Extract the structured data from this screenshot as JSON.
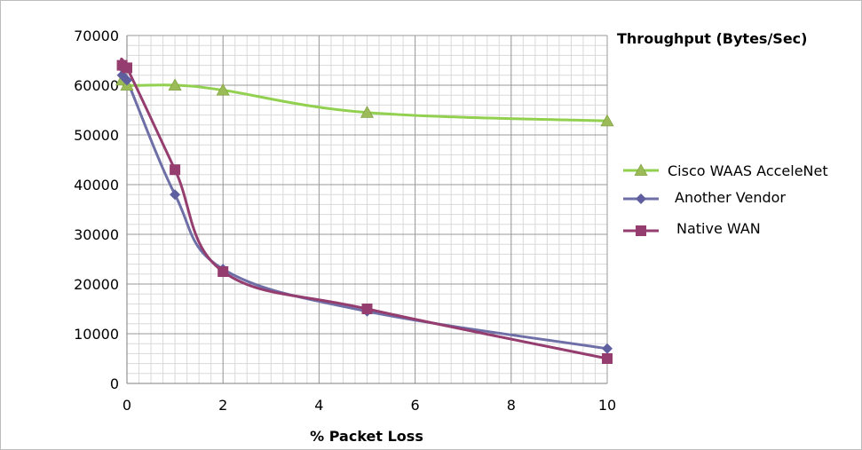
{
  "chart_data": {
    "type": "line",
    "title": "Throughput (Bytes/Sec)",
    "xlabel": "% Packet Loss",
    "ylabel": "",
    "xlim": [
      0,
      10
    ],
    "ylim": [
      0,
      70000
    ],
    "x_ticks": [
      0,
      2,
      4,
      6,
      8,
      10
    ],
    "y_ticks": [
      0,
      10000,
      20000,
      30000,
      40000,
      50000,
      60000,
      70000
    ],
    "grid": true,
    "legend_position": "right",
    "series": [
      {
        "name": "Cisco WAAS AcceleNet",
        "color": "#92d050",
        "marker": "triangle",
        "marker_color": "#9bbb59",
        "x": [
          -0.1,
          0,
          1,
          2,
          5,
          10
        ],
        "y": [
          61000,
          60000,
          60000,
          59000,
          54500,
          52800
        ]
      },
      {
        "name": "Another Vendor",
        "color": "#6f6fa8",
        "marker": "diamond",
        "marker_color": "#5f5f9f",
        "x": [
          -0.1,
          0,
          1,
          2,
          5,
          10
        ],
        "y": [
          62000,
          61000,
          38000,
          23000,
          14500,
          7000
        ]
      },
      {
        "name": "Native WAN",
        "color": "#943d6e",
        "marker": "square",
        "marker_color": "#943d6e",
        "x": [
          -0.1,
          0,
          1,
          2,
          5,
          10
        ],
        "y": [
          64000,
          63500,
          43000,
          22500,
          15000,
          5000
        ]
      }
    ]
  }
}
